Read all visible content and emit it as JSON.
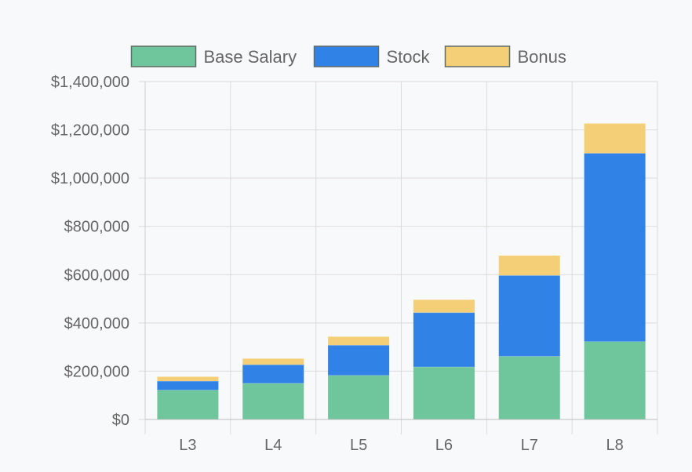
{
  "chart_data": {
    "type": "bar",
    "stacked": true,
    "categories": [
      "L3",
      "L4",
      "L5",
      "L6",
      "L7",
      "L8"
    ],
    "series": [
      {
        "name": "Base Salary",
        "color": "#6fc69c",
        "values": [
          122000,
          150000,
          183000,
          218000,
          262000,
          323000
        ]
      },
      {
        "name": "Stock",
        "color": "#3182e6",
        "values": [
          37000,
          77000,
          125000,
          225000,
          335000,
          780000
        ]
      },
      {
        "name": "Bonus",
        "color": "#f4cf78",
        "values": [
          18000,
          25000,
          35000,
          53000,
          82000,
          123000
        ]
      }
    ],
    "ylim": [
      0,
      1400000
    ],
    "yticks": [
      0,
      200000,
      400000,
      600000,
      800000,
      1000000,
      1200000,
      1400000
    ],
    "ytick_labels": [
      "$0",
      "$200,000",
      "$400,000",
      "$600,000",
      "$800,000",
      "$1,000,000",
      "$1,200,000",
      "$1,400,000"
    ],
    "grid": true,
    "legend_position": "top"
  }
}
